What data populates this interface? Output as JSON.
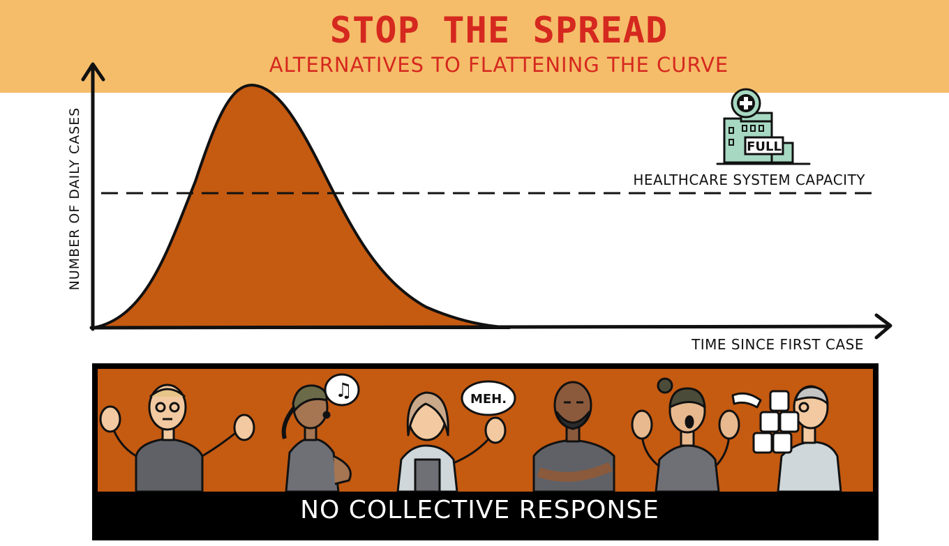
{
  "header": {
    "title": "STOP THE SPREAD",
    "subtitle": "ALTERNATIVES TO FLATTENING THE CURVE"
  },
  "chart": {
    "y_axis_label": "NUMBER OF DAILY CASES",
    "x_axis_label": "TIME SINCE FIRST CASE",
    "capacity_label": "HEALTHCARE SYSTEM CAPACITY",
    "hospital_sign": "FULL",
    "curve_color": "#c55a11"
  },
  "panel": {
    "label": "NO COLLECTIVE RESPONSE",
    "speech_bubble": "MEH."
  },
  "colors": {
    "banner": "#f5bd69",
    "title": "#d5281f",
    "hospital": "#a7d9c2"
  }
}
